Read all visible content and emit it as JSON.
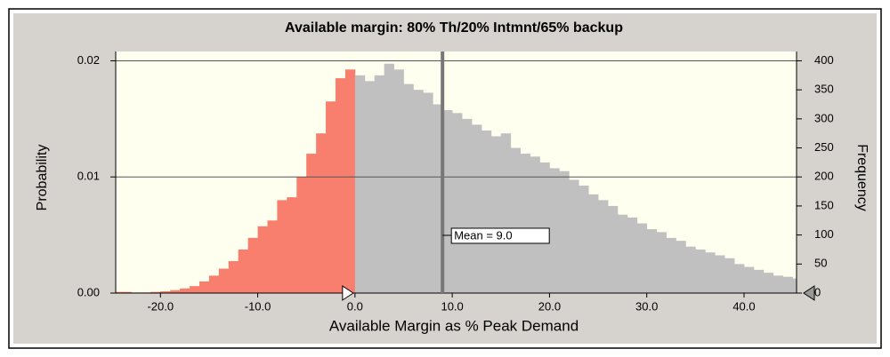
{
  "chart_data": {
    "type": "histogram",
    "title": "Available margin: 80% Th/20% Intmnt/65% backup",
    "xlabel": "Available Margin as % Peak Demand",
    "ylabel": "Probability",
    "y2label": "Frequency",
    "bins": [
      -25,
      -24,
      -23,
      -22,
      -21,
      -20,
      -19,
      -18,
      -17,
      -16,
      -15,
      -14,
      -13,
      -12,
      -11,
      -10,
      -9,
      -8,
      -7,
      -6,
      -5,
      -4,
      -3,
      -2,
      -1,
      0,
      1,
      2,
      3,
      4,
      5,
      6,
      7,
      8,
      9,
      10,
      11,
      12,
      13,
      14,
      15,
      16,
      17,
      18,
      19,
      20,
      21,
      22,
      23,
      24,
      25,
      26,
      27,
      28,
      29,
      30,
      31,
      32,
      33,
      34,
      35,
      36,
      37,
      38,
      39,
      40,
      41,
      42,
      43,
      44,
      45,
      46,
      47
    ],
    "series": [
      {
        "name": "Frequency",
        "axis": "y2",
        "color": "#c0c0c0",
        "values": [
          2,
          2,
          1,
          1,
          2,
          3,
          5,
          8,
          12,
          20,
          30,
          42,
          55,
          75,
          95,
          115,
          125,
          160,
          165,
          200,
          240,
          275,
          330,
          370,
          385,
          375,
          365,
          375,
          395,
          385,
          360,
          350,
          345,
          325,
          315,
          310,
          300,
          290,
          280,
          270,
          275,
          250,
          240,
          235,
          225,
          215,
          210,
          195,
          185,
          170,
          160,
          150,
          135,
          130,
          120,
          110,
          105,
          95,
          90,
          80,
          75,
          70,
          65,
          60,
          50,
          45,
          40,
          35,
          30,
          28,
          25,
          22
        ]
      }
    ],
    "highlight_max": 0,
    "highlight_color": "#f87e6e",
    "mean": 9.0,
    "mean_label": "Mean = 9.0",
    "xlim": [
      -24.6,
      45.4
    ],
    "xticks": [
      {
        "value": -20,
        "label": "-20.0"
      },
      {
        "value": -10,
        "label": "-10.0"
      },
      {
        "value": 0,
        "label": "0.0"
      },
      {
        "value": 10,
        "label": "10.0"
      },
      {
        "value": 20,
        "label": "20.0"
      },
      {
        "value": 30,
        "label": "30.0"
      },
      {
        "value": 40,
        "label": "40.0"
      }
    ],
    "ylim": [
      0,
      0.0208
    ],
    "yticks": [
      {
        "value": 0,
        "label": "0.00"
      },
      0.01,
      0.02
    ],
    "y2lim": [
      0,
      416
    ],
    "y2ticks": [
      0,
      50,
      100,
      150,
      200,
      250,
      300,
      350,
      400
    ],
    "grid": true
  }
}
